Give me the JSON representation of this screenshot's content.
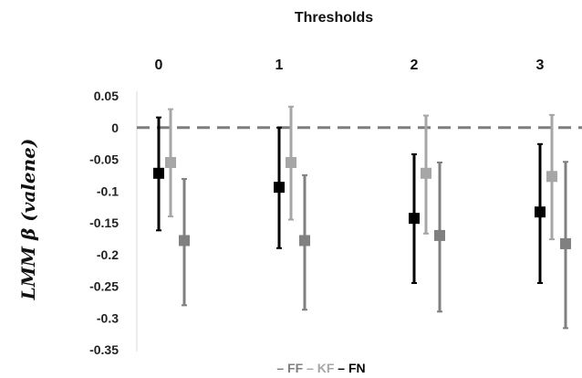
{
  "chart_data": {
    "type": "scatter",
    "title": "Thresholds",
    "ylabel": "LMM β (valene)",
    "xlabel": "",
    "categories": [
      "0",
      "1",
      "2",
      "3"
    ],
    "ylim": [
      -0.35,
      0.05
    ],
    "yticks": [
      0.05,
      0,
      -0.05,
      -0.1,
      -0.15,
      -0.2,
      -0.25,
      -0.3,
      -0.35
    ],
    "ytick_labels": [
      "0.05",
      "0",
      "-0.05",
      "-0.1",
      "-0.15",
      "-0.2",
      "-0.25",
      "-0.3",
      "-0.35"
    ],
    "reference_line": {
      "y": 0,
      "style": "dashed",
      "color": "#7f7f7f"
    },
    "grid": false,
    "legend_position": "bottom",
    "series": [
      {
        "name": "FN",
        "color": "#000000",
        "values": [
          -0.072,
          -0.094,
          -0.143,
          -0.133
        ],
        "lower": [
          -0.162,
          -0.19,
          -0.245,
          -0.245
        ],
        "upper": [
          0.016,
          0.0,
          -0.042,
          -0.026
        ]
      },
      {
        "name": "KF",
        "color": "#a6a6a6",
        "values": [
          -0.055,
          -0.055,
          -0.072,
          -0.077
        ],
        "lower": [
          -0.14,
          -0.145,
          -0.167,
          -0.176
        ],
        "upper": [
          0.029,
          0.033,
          0.019,
          0.02
        ]
      },
      {
        "name": "FF",
        "color": "#808080",
        "values": [
          -0.178,
          -0.178,
          -0.17,
          -0.183
        ],
        "lower": [
          -0.28,
          -0.287,
          -0.29,
          -0.316
        ],
        "upper": [
          -0.081,
          -0.075,
          -0.055,
          -0.054
        ]
      }
    ],
    "legend": [
      {
        "dash": "–",
        "label": "FF",
        "color": "#7f7f7f"
      },
      {
        "dash": "–",
        "label": "KF",
        "color": "#a6a6a6"
      },
      {
        "dash": "–",
        "label": "FN",
        "color": "#000000"
      }
    ]
  }
}
